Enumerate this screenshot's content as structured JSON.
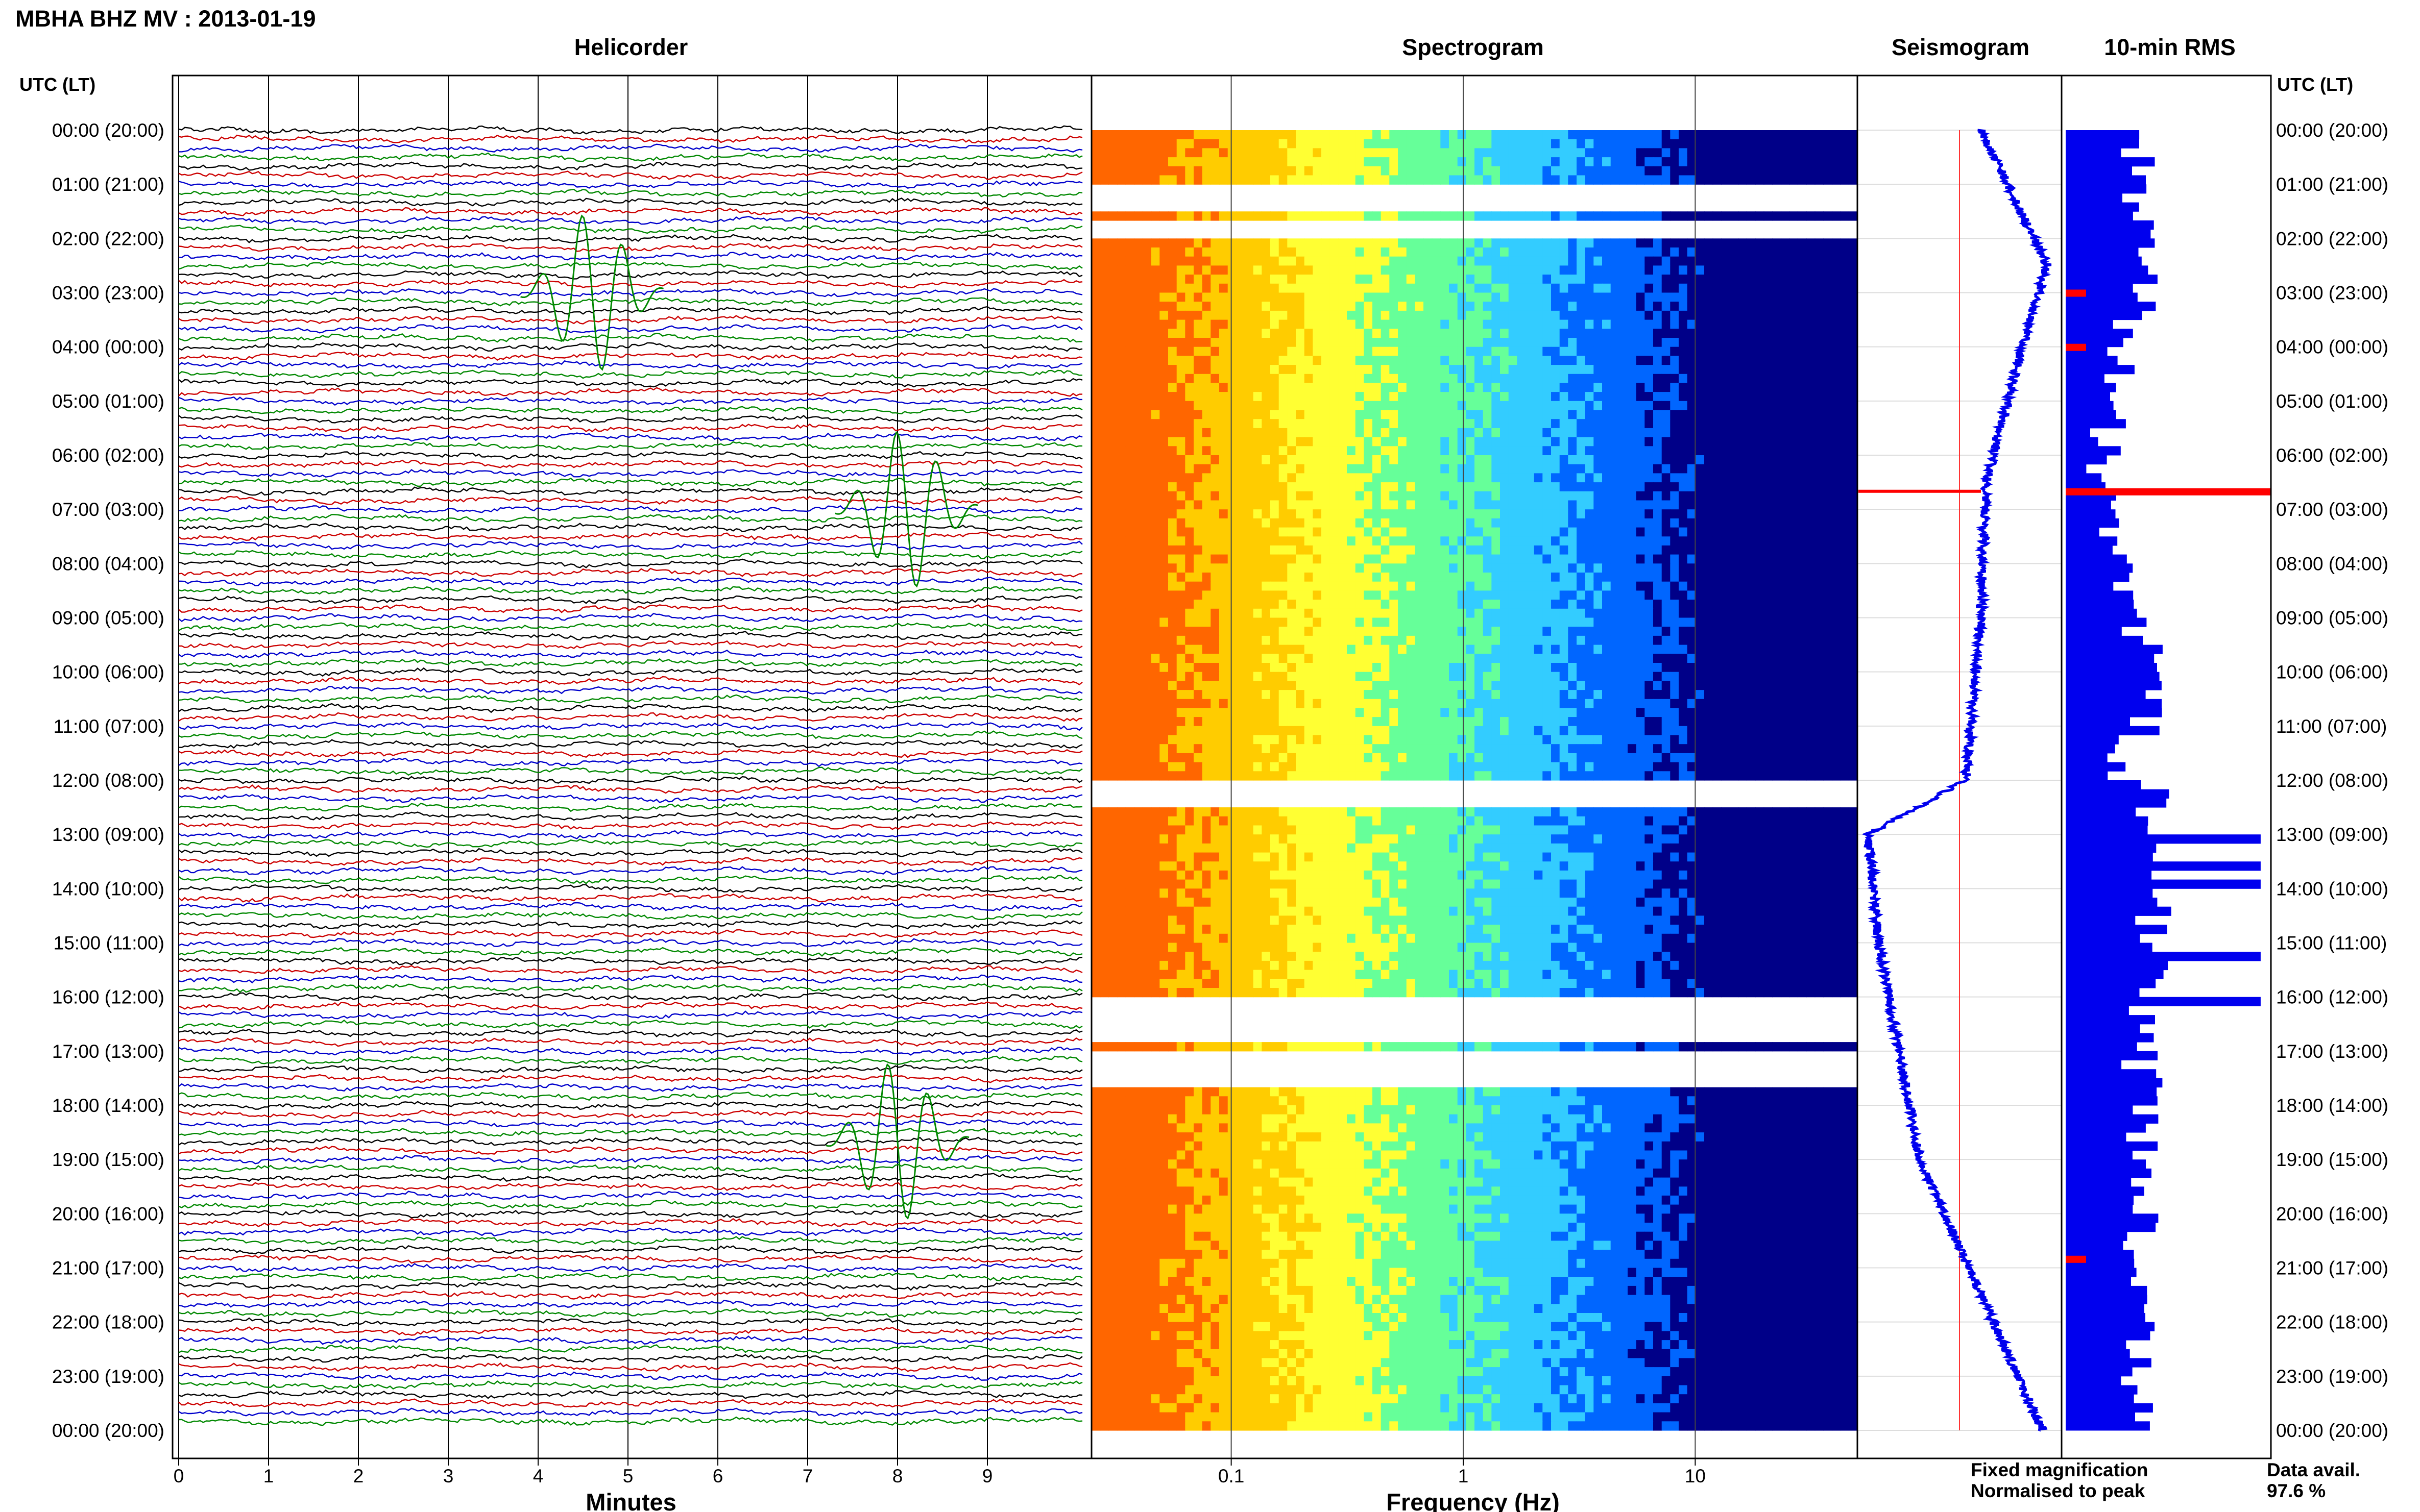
{
  "header": {
    "title": "MBHA BHZ MV : 2013-01-19"
  },
  "time_axis": {
    "label": "UTC (LT)",
    "ticks": [
      "00:00 (20:00)",
      "01:00 (21:00)",
      "02:00 (22:00)",
      "03:00 (23:00)",
      "04:00 (00:00)",
      "05:00 (01:00)",
      "06:00 (02:00)",
      "07:00 (03:00)",
      "08:00 (04:00)",
      "09:00 (05:00)",
      "10:00 (06:00)",
      "11:00 (07:00)",
      "12:00 (08:00)",
      "13:00 (09:00)",
      "14:00 (10:00)",
      "15:00 (11:00)",
      "16:00 (12:00)",
      "17:00 (13:00)",
      "18:00 (14:00)",
      "19:00 (15:00)",
      "20:00 (16:00)",
      "21:00 (17:00)",
      "22:00 (18:00)",
      "23:00 (19:00)",
      "00:00 (20:00)"
    ]
  },
  "legend": {
    "fixed": "Fixed magnification",
    "normalised": "Normalised to peak",
    "fixed_color": "#0000ff",
    "normalised_color": "#ff0000"
  },
  "availability": {
    "label": "Data avail.",
    "value": "97.6 %"
  },
  "chart_data": [
    {
      "type": "line",
      "title": "Helicorder",
      "xlabel": "Minutes",
      "x_ticks": [
        "0",
        "1",
        "2",
        "3",
        "4",
        "5",
        "6",
        "7",
        "8",
        "9"
      ],
      "xlim": [
        0,
        10
      ],
      "rows": 144,
      "row_minutes": 10,
      "trace_colors": [
        "#000000",
        "#cc0000",
        "#0000cc",
        "#008800"
      ],
      "notable_events": [
        {
          "time": "03:00",
          "minute": 4.6,
          "description": "large oscillation"
        },
        {
          "time": "07:00",
          "minute": 8.1,
          "description": "large green oscillation"
        },
        {
          "time": "18:40",
          "minute": 8.0,
          "description": "large oscillation"
        }
      ]
    },
    {
      "type": "heatmap",
      "title": "Spectrogram",
      "xlabel": "Frequency (Hz)",
      "x_scale": "log",
      "xlim": [
        0.025,
        50
      ],
      "x_ticks": [
        "0.1",
        "1",
        "10"
      ],
      "colormap": [
        "#ff6600",
        "#ffcc00",
        "#ffff33",
        "#66ff99",
        "#33ccff",
        "#0066ff",
        "#000088"
      ],
      "gaps_utc": [
        [
          "01:00",
          "01:30"
        ],
        [
          "01:40",
          "02:00"
        ],
        [
          "12:00",
          "12:30"
        ],
        [
          "16:00",
          "16:50"
        ],
        [
          "17:00",
          "17:40"
        ]
      ]
    },
    {
      "type": "line",
      "title": "Seismogram",
      "y": "time (UTC)",
      "shape": "drift from right to left, minimum near 13:00-14:00, recovering to right by 23:59",
      "spike_utc": "06:40"
    },
    {
      "type": "bar",
      "title": "10-min RMS",
      "orientation": "horizontal",
      "bar_color": "#0000ee",
      "highlight_color": "#ff0000",
      "highlight_times_utc": [
        "03:00",
        "04:00",
        "06:40",
        "20:50"
      ]
    }
  ]
}
